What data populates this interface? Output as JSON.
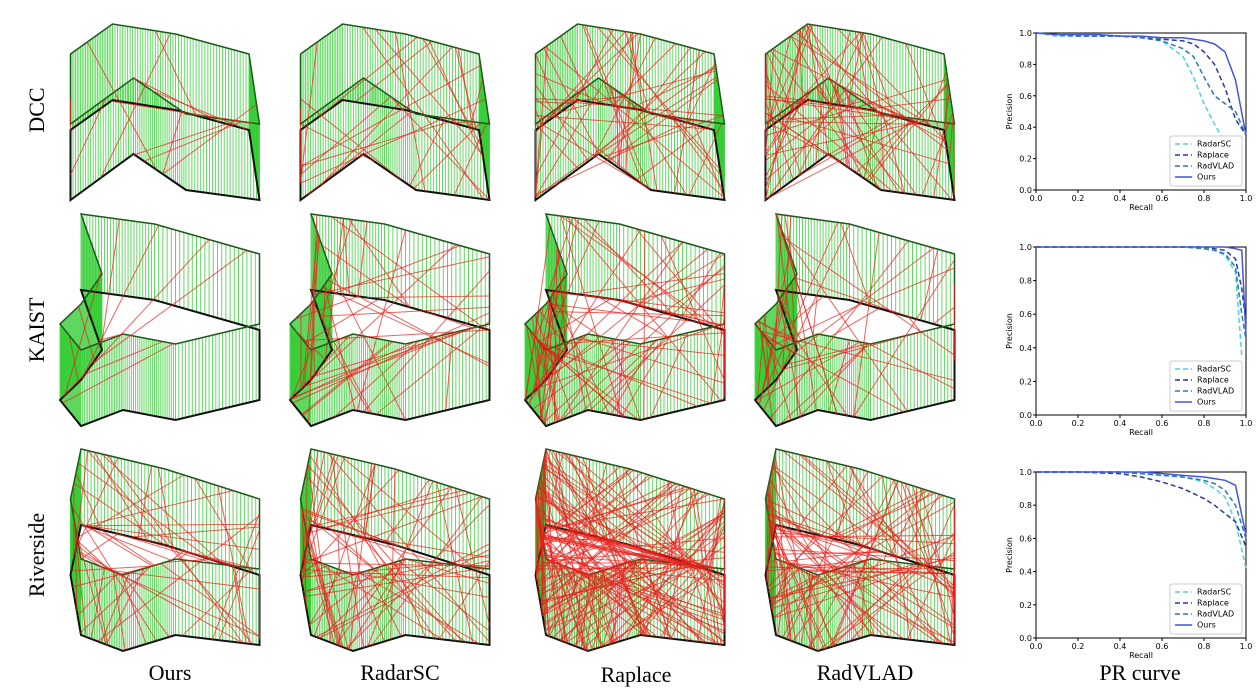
{
  "row_labels": [
    "DCC",
    "KAIST",
    "Riverside"
  ],
  "column_labels": [
    "Ours",
    "RadarSC",
    "Raplace",
    "RadVLAD",
    "PR curve"
  ],
  "chart_data": [
    {
      "type": "line",
      "xlabel": "Recall",
      "ylabel": "Precision",
      "xlim": [
        0,
        1
      ],
      "ylim": [
        0,
        1
      ],
      "xticks": [
        {
          "value": 0,
          "label": "0.0"
        },
        0.2,
        0.4,
        0.6,
        0.8,
        {
          "value": 1,
          "label": "1.0"
        }
      ],
      "yticks": [
        {
          "value": 0,
          "label": "0.0"
        },
        0.2,
        0.4,
        0.6,
        0.8,
        {
          "value": 1,
          "label": "1.0"
        }
      ],
      "legend": "lower right",
      "x": [
        0,
        0.1,
        0.2,
        0.3,
        0.4,
        0.5,
        0.6,
        0.7,
        0.75,
        0.8,
        0.85,
        0.9,
        0.95,
        1.0
      ],
      "series": [
        {
          "name": "RadarSC",
          "color": "#4fd1d9",
          "style": "dashed",
          "values": [
            1.0,
            0.98,
            0.98,
            0.98,
            0.98,
            0.97,
            0.95,
            0.85,
            0.72,
            0.55,
            0.42,
            0.3,
            null,
            null
          ]
        },
        {
          "name": "Raplace",
          "color": "#2b3a8c",
          "style": "dashed",
          "values": [
            1.0,
            0.99,
            0.98,
            0.98,
            0.98,
            0.97,
            0.96,
            0.95,
            0.93,
            0.88,
            0.8,
            0.65,
            0.45,
            0.35
          ]
        },
        {
          "name": "RadVLAD",
          "color": "#2a7ab0",
          "style": "dashed",
          "values": [
            1.0,
            0.99,
            0.98,
            0.98,
            0.98,
            0.97,
            0.95,
            0.9,
            0.85,
            0.72,
            0.6,
            0.55,
            0.5,
            0.35
          ]
        },
        {
          "name": "Ours",
          "color": "#4455e0",
          "style": "solid",
          "values": [
            1.0,
            0.99,
            0.99,
            0.99,
            0.98,
            0.98,
            0.97,
            0.97,
            0.96,
            0.95,
            0.93,
            0.88,
            0.7,
            0.35
          ]
        }
      ]
    },
    {
      "type": "line",
      "xlabel": "Recall",
      "ylabel": "Precision",
      "xlim": [
        0,
        1
      ],
      "ylim": [
        0,
        1
      ],
      "xticks": [
        {
          "value": 0,
          "label": "0.0"
        },
        0.2,
        0.4,
        0.6,
        0.8,
        {
          "value": 1,
          "label": "1.0"
        }
      ],
      "yticks": [
        {
          "value": 0,
          "label": "0.0"
        },
        0.2,
        0.4,
        0.6,
        0.8,
        {
          "value": 1,
          "label": "1.0"
        }
      ],
      "legend": "lower right",
      "x": [
        0,
        0.2,
        0.4,
        0.6,
        0.7,
        0.8,
        0.85,
        0.9,
        0.95,
        0.98,
        1.0
      ],
      "series": [
        {
          "name": "RadarSC",
          "color": "#4fd1d9",
          "style": "dashed",
          "values": [
            1.0,
            1.0,
            1.0,
            1.0,
            1.0,
            0.99,
            0.98,
            0.95,
            0.85,
            0.35,
            null
          ]
        },
        {
          "name": "Raplace",
          "color": "#2b3a8c",
          "style": "dashed",
          "values": [
            1.0,
            1.0,
            1.0,
            1.0,
            1.0,
            1.0,
            0.99,
            0.98,
            0.93,
            0.75,
            0.55
          ]
        },
        {
          "name": "RadVLAD",
          "color": "#2a7ab0",
          "style": "dashed",
          "values": [
            1.0,
            1.0,
            1.0,
            1.0,
            1.0,
            0.99,
            0.98,
            0.96,
            0.88,
            0.6,
            0.45
          ]
        },
        {
          "name": "Ours",
          "color": "#4455e0",
          "style": "solid",
          "values": [
            1.0,
            1.0,
            1.0,
            1.0,
            1.0,
            1.0,
            1.0,
            1.0,
            0.99,
            0.98,
            0.47
          ]
        }
      ]
    },
    {
      "type": "line",
      "xlabel": "Recall",
      "ylabel": "Precision",
      "xlim": [
        0,
        1
      ],
      "ylim": [
        0,
        1
      ],
      "xticks": [
        {
          "value": 0,
          "label": "0.0"
        },
        0.2,
        0.4,
        0.6,
        0.8,
        {
          "value": 1,
          "label": "1.0"
        }
      ],
      "yticks": [
        {
          "value": 0,
          "label": "0.0"
        },
        0.2,
        0.4,
        0.6,
        0.8,
        {
          "value": 1,
          "label": "1.0"
        }
      ],
      "legend": "lower right",
      "x": [
        0,
        0.2,
        0.4,
        0.5,
        0.6,
        0.7,
        0.8,
        0.85,
        0.9,
        0.95,
        1.0
      ],
      "series": [
        {
          "name": "RadarSC",
          "color": "#4fd1d9",
          "style": "dashed",
          "values": [
            1.0,
            1.0,
            1.0,
            0.99,
            0.98,
            0.97,
            0.94,
            0.9,
            0.85,
            0.7,
            0.42
          ]
        },
        {
          "name": "Raplace",
          "color": "#2b3a8c",
          "style": "dashed",
          "values": [
            1.0,
            1.0,
            0.99,
            0.97,
            0.94,
            0.9,
            0.84,
            0.8,
            0.75,
            0.7,
            0.55
          ]
        },
        {
          "name": "RadVLAD",
          "color": "#2a7ab0",
          "style": "dashed",
          "values": [
            1.0,
            1.0,
            1.0,
            0.99,
            0.98,
            0.97,
            0.95,
            0.93,
            0.89,
            0.8,
            0.6
          ]
        },
        {
          "name": "Ours",
          "color": "#4455e0",
          "style": "solid",
          "values": [
            1.0,
            1.0,
            1.0,
            1.0,
            0.99,
            0.98,
            0.97,
            0.96,
            0.95,
            0.92,
            0.62
          ]
        }
      ]
    }
  ]
}
